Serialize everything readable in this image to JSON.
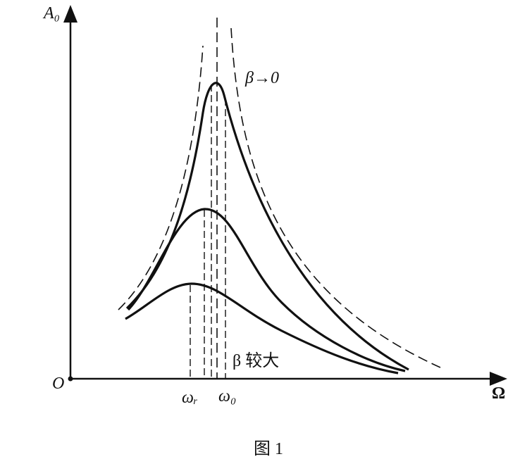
{
  "axes": {
    "y_label": "A₀",
    "x_label": "Ω",
    "origin": "O"
  },
  "marks": {
    "omega_r": "ωᵣ",
    "omega_0": "ω₀"
  },
  "annotations": {
    "small_beta": "β→0",
    "large_beta": "β 较大"
  },
  "caption": "图 1"
}
